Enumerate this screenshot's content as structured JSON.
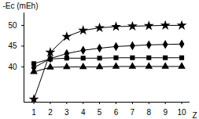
{
  "chart_data": {
    "type": "line",
    "x_label": "Z",
    "y_label": "-Ec (mEh)",
    "x": [
      1,
      2,
      3,
      4,
      5,
      6,
      7,
      8,
      9,
      10
    ],
    "xlim": [
      0.4,
      10.5
    ],
    "xticks": [
      1,
      2,
      3,
      4,
      5,
      6,
      7,
      8,
      9,
      10
    ],
    "ylim": [
      31.5,
      53
    ],
    "yticks": [
      40,
      45,
      50
    ],
    "grid": false,
    "series": [
      {
        "color": "#000000",
        "marker": "star",
        "line_style": "solid",
        "values": [
          32.2,
          43.5,
          47.3,
          48.8,
          49.4,
          49.7,
          49.8,
          49.9,
          50.0,
          50.0
        ]
      },
      {
        "color": "#000000",
        "marker": "diamond",
        "line_style": "solid",
        "values": [
          39.8,
          42.0,
          43.2,
          44.0,
          44.5,
          44.9,
          45.1,
          45.3,
          45.4,
          45.5
        ]
      },
      {
        "color": "#000000",
        "marker": "square",
        "line_style": "solid",
        "values": [
          40.8,
          41.9,
          42.1,
          42.1,
          42.1,
          42.2,
          42.2,
          42.2,
          42.2,
          42.2
        ]
      },
      {
        "color": "#000000",
        "marker": "triangle",
        "line_style": "solid",
        "values": [
          38.8,
          39.9,
          40.0,
          40.0,
          40.0,
          40.1,
          40.1,
          40.1,
          40.1,
          40.1
        ]
      }
    ]
  }
}
